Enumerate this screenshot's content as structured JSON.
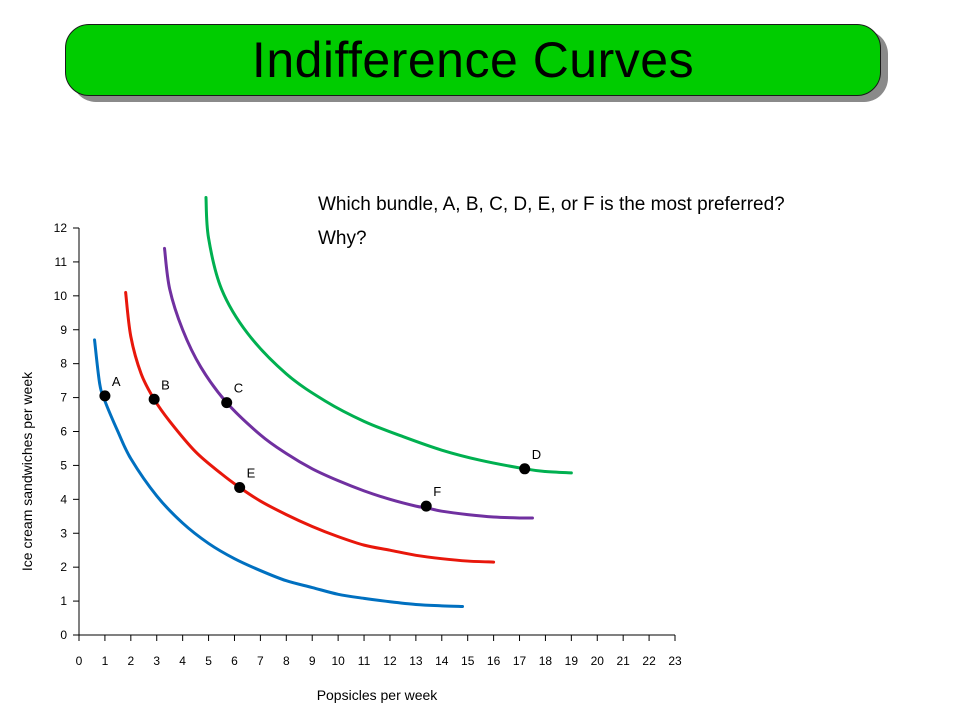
{
  "header": {
    "title": "Indifference Curves"
  },
  "question": {
    "line1": "Which bundle, A, B, C, D, E, or F is the most preferred?",
    "line2": "Why?"
  },
  "chart_data": {
    "type": "line",
    "title": "Indifference Curves",
    "xlabel": "Popsicles per week",
    "ylabel": "Ice cream sandwiches per week",
    "xlim": [
      0,
      23
    ],
    "ylim": [
      0,
      12
    ],
    "xticks": [
      0,
      1,
      2,
      3,
      4,
      5,
      6,
      7,
      8,
      9,
      10,
      11,
      12,
      13,
      14,
      15,
      16,
      17,
      18,
      19,
      20,
      21,
      22,
      23
    ],
    "yticks": [
      0,
      1,
      2,
      3,
      4,
      5,
      6,
      7,
      8,
      9,
      10,
      11,
      12
    ],
    "grid": false,
    "legend": "none",
    "series": [
      {
        "color": "#0070c0",
        "points": [
          [
            0.6,
            8.7
          ],
          [
            0.8,
            7.4
          ],
          [
            1.0,
            6.9
          ],
          [
            1.5,
            6.0
          ],
          [
            2,
            5.2
          ],
          [
            3,
            4.1
          ],
          [
            4,
            3.3
          ],
          [
            5,
            2.7
          ],
          [
            6,
            2.25
          ],
          [
            7,
            1.9
          ],
          [
            8,
            1.6
          ],
          [
            9,
            1.4
          ],
          [
            10,
            1.2
          ],
          [
            11,
            1.08
          ],
          [
            12,
            0.98
          ],
          [
            13,
            0.9
          ],
          [
            14,
            0.86
          ],
          [
            14.8,
            0.84
          ]
        ]
      },
      {
        "color": "#e8170b",
        "points": [
          [
            1.8,
            10.1
          ],
          [
            2.0,
            8.8
          ],
          [
            2.4,
            7.7
          ],
          [
            2.9,
            6.95
          ],
          [
            3.5,
            6.3
          ],
          [
            4.5,
            5.4
          ],
          [
            5.5,
            4.75
          ],
          [
            6.2,
            4.35
          ],
          [
            7,
            3.95
          ],
          [
            8,
            3.55
          ],
          [
            9,
            3.2
          ],
          [
            10,
            2.9
          ],
          [
            11,
            2.65
          ],
          [
            12,
            2.5
          ],
          [
            13,
            2.35
          ],
          [
            14,
            2.25
          ],
          [
            15,
            2.18
          ],
          [
            16,
            2.15
          ]
        ]
      },
      {
        "color": "#7030a0",
        "points": [
          [
            3.3,
            11.4
          ],
          [
            3.5,
            10.2
          ],
          [
            4,
            9.0
          ],
          [
            4.7,
            7.9
          ],
          [
            5.7,
            6.85
          ],
          [
            7,
            5.9
          ],
          [
            8,
            5.35
          ],
          [
            9,
            4.9
          ],
          [
            10,
            4.55
          ],
          [
            11,
            4.25
          ],
          [
            12,
            4.0
          ],
          [
            13,
            3.8
          ],
          [
            13.4,
            3.75
          ],
          [
            14,
            3.65
          ],
          [
            15,
            3.55
          ],
          [
            16,
            3.48
          ],
          [
            17,
            3.45
          ],
          [
            17.5,
            3.45
          ]
        ]
      },
      {
        "color": "#00b050",
        "points": [
          [
            4.9,
            12.9
          ],
          [
            5.0,
            11.7
          ],
          [
            5.5,
            10.2
          ],
          [
            6.5,
            8.9
          ],
          [
            8,
            7.7
          ],
          [
            9.5,
            6.9
          ],
          [
            11,
            6.3
          ],
          [
            12.5,
            5.85
          ],
          [
            14,
            5.45
          ],
          [
            15.5,
            5.15
          ],
          [
            17.2,
            4.9
          ],
          [
            18,
            4.82
          ],
          [
            19,
            4.78
          ]
        ]
      }
    ],
    "points": [
      {
        "label": "A",
        "x": 1.0,
        "y": 7.05
      },
      {
        "label": "B",
        "x": 2.9,
        "y": 6.95
      },
      {
        "label": "C",
        "x": 5.7,
        "y": 6.85
      },
      {
        "label": "D",
        "x": 17.2,
        "y": 4.9
      },
      {
        "label": "E",
        "x": 6.2,
        "y": 4.35
      },
      {
        "label": "F",
        "x": 13.4,
        "y": 3.8
      }
    ],
    "point_color": "#000000"
  }
}
